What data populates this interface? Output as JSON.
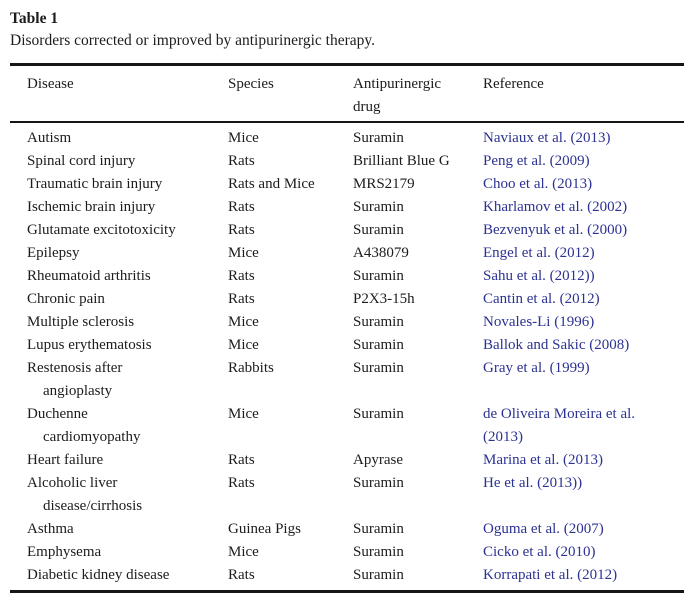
{
  "title": "Table 1",
  "caption": "Disorders corrected or improved by antipurinergic therapy.",
  "colors": {
    "link_blue": "#2c3292",
    "text": "#1c1c1c",
    "rule": "#161616"
  },
  "table": {
    "columns": [
      {
        "key": "disease",
        "label": "Disease"
      },
      {
        "key": "species",
        "label": "Species"
      },
      {
        "key": "drug",
        "label": "Antipurinergic\ndrug"
      },
      {
        "key": "reference",
        "label": "Reference"
      }
    ],
    "rows": [
      {
        "disease": "Autism",
        "species": "Mice",
        "drug": "Suramin",
        "reference": "Naviaux et al. (2013)"
      },
      {
        "disease": "Spinal cord injury",
        "species": "Rats",
        "drug": "Brilliant Blue G",
        "reference": "Peng et al. (2009)"
      },
      {
        "disease": "Traumatic brain injury",
        "species": "Rats and Mice",
        "drug": "MRS2179",
        "reference": "Choo et al. (2013)"
      },
      {
        "disease": "Ischemic brain injury",
        "species": "Rats",
        "drug": "Suramin",
        "reference": "Kharlamov et al. (2002)"
      },
      {
        "disease": "Glutamate excitotoxicity",
        "species": "Rats",
        "drug": "Suramin",
        "reference": "Bezvenyuk et al. (2000)"
      },
      {
        "disease": "Epilepsy",
        "species": "Mice",
        "drug": "A438079",
        "reference": "Engel et al. (2012)"
      },
      {
        "disease": "Rheumatoid arthritis",
        "species": "Rats",
        "drug": "Suramin",
        "reference": "Sahu et al. (2012))"
      },
      {
        "disease": "Chronic pain",
        "species": "Rats",
        "drug": "P2X3-15h",
        "reference": "Cantin et al. (2012)"
      },
      {
        "disease": "Multiple sclerosis",
        "species": "Mice",
        "drug": "Suramin",
        "reference": "Novales-Li (1996)"
      },
      {
        "disease": "Lupus erythematosis",
        "species": "Mice",
        "drug": "Suramin",
        "reference": "Ballok and Sakic (2008)"
      },
      {
        "disease": "Restenosis after\nangioplasty",
        "species": "Rabbits",
        "drug": "Suramin",
        "reference": "Gray et al. (1999)"
      },
      {
        "disease": "Duchenne\ncardiomyopathy",
        "species": "Mice",
        "drug": "Suramin",
        "reference": "de Oliveira Moreira et al.\n(2013)"
      },
      {
        "disease": "Heart failure",
        "species": "Rats",
        "drug": "Apyrase",
        "reference": "Marina et al. (2013)"
      },
      {
        "disease": "Alcoholic liver\ndisease/cirrhosis",
        "species": "Rats",
        "drug": "Suramin",
        "reference": "He et al. (2013))"
      },
      {
        "disease": "Asthma",
        "species": "Guinea Pigs",
        "drug": "Suramin",
        "reference": "Oguma et al. (2007)"
      },
      {
        "disease": "Emphysema",
        "species": "Mice",
        "drug": "Suramin",
        "reference": "Cicko et al. (2010)"
      },
      {
        "disease": "Diabetic kidney disease",
        "species": "Rats",
        "drug": "Suramin",
        "reference": "Korrapati et al. (2012)"
      }
    ]
  }
}
